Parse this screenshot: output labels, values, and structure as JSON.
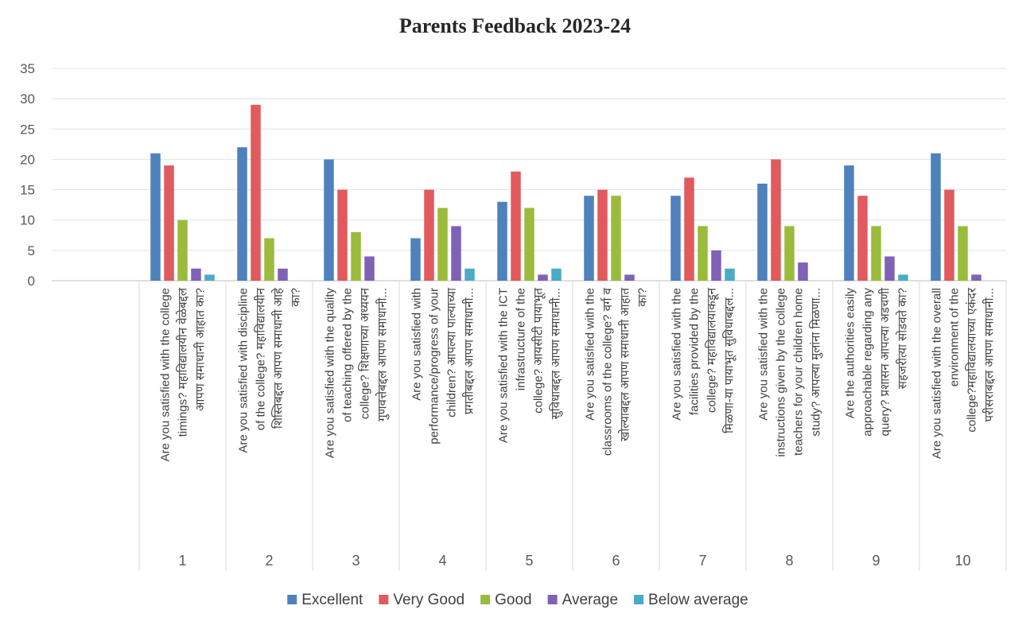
{
  "chart_data": {
    "type": "bar",
    "title": "Parents Feedback 2023-24",
    "xlabel": "",
    "ylabel": "",
    "ylim": [
      0,
      35
    ],
    "yticks": [
      0,
      5,
      10,
      15,
      20,
      25,
      30,
      35
    ],
    "grid": true,
    "legend_position": "bottom",
    "categories": [
      "1",
      "2",
      "3",
      "4",
      "5",
      "6",
      "7",
      "8",
      "9",
      "10"
    ],
    "category_questions": [
      [
        "Are you satisfied with the college",
        "timings? महाविद्यालयीन वेळेबद्दल",
        "आपण समाधानी आहात का?"
      ],
      [
        "Are you satisfied with discipline",
        "of the college?  महाविद्यालयीन",
        "शिस्तिबद्दल आपण समाधानी आहे",
        "का?"
      ],
      [
        "Are you satisfied with the quality",
        "of teaching offered by the",
        "college? शिक्षणाच्या अध्ययन",
        "गुणवत्तेबद्दल आपण समाधानी..."
      ],
      [
        "Are you satisfied with",
        "performance/progress of your",
        "children?  आपल्या पाल्याच्या",
        "प्रगतीबद्दल आपण समाधानी..."
      ],
      [
        "Are you satisfied with the ICT",
        "infrastructure of the",
        "college?  आयसीटी  पायाभूत",
        "सुविधाबद्दल आपण समाधानी..."
      ],
      [
        "Are you satisfied with the",
        "classrooms of the college? वर्ग व",
        "खोल्याबद्दल आपण समाधानी आहात",
        "का?"
      ],
      [
        "Are you satisfied with the",
        "facilities provided by the",
        "college?  महाविद्यालयाकडून",
        "मिळणा-या पायाभूत सुविधाबद्दल..."
      ],
      [
        "Are you satisfied with the",
        "instructions given by the college",
        "teachers for your children home",
        "study?  आपल्या मुलांना मिळणा..."
      ],
      [
        "Are the authorities easily",
        "approachable regarding any",
        "query? प्रशासन आपल्या अडचणी",
        "सहजरीत्या सोडवते का?"
      ],
      [
        "Are you satisfied with the overall",
        "environment of the",
        "college?महाविद्यालयाच्या एकंदर",
        "परीसराबद्दल आपण समाधानी..."
      ]
    ],
    "series": [
      {
        "name": "Excellent",
        "color": "#4f81bd",
        "values": [
          21,
          22,
          20,
          7,
          13,
          14,
          14,
          16,
          19,
          21
        ]
      },
      {
        "name": "Very Good",
        "color": "#e05a5e",
        "values": [
          19,
          29,
          15,
          15,
          18,
          15,
          17,
          20,
          14,
          15
        ]
      },
      {
        "name": "Good",
        "color": "#9bbb3c",
        "values": [
          10,
          7,
          8,
          12,
          12,
          14,
          9,
          9,
          9,
          9
        ]
      },
      {
        "name": "Average",
        "color": "#7f62b5",
        "values": [
          2,
          2,
          4,
          9,
          1,
          1,
          5,
          3,
          4,
          1
        ]
      },
      {
        "name": "Below average",
        "color": "#4babc6",
        "values": [
          1,
          0,
          0,
          2,
          2,
          0,
          2,
          0,
          1,
          0
        ]
      }
    ]
  }
}
